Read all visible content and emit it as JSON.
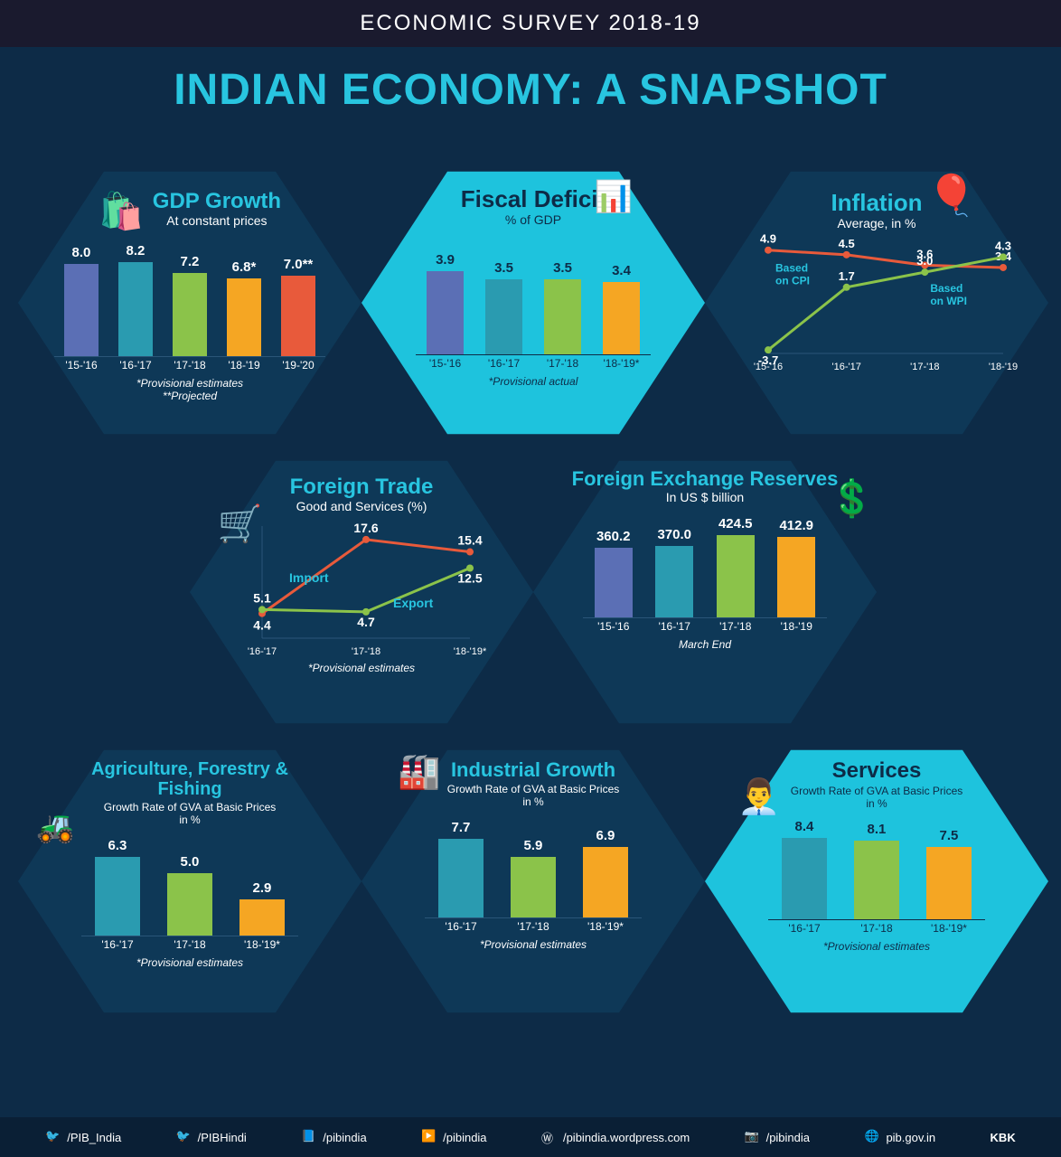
{
  "header": "ECONOMIC SURVEY 2018-19",
  "title": "INDIAN ECONOMY: A SNAPSHOT",
  "colors": {
    "bg": "#0d2b47",
    "accent": "#28c5e0",
    "hex_dark": "#0e3857",
    "hex_light": "#1ec3dd",
    "bar_blue": "#5b6fb5",
    "bar_teal": "#2a9bb0",
    "bar_green": "#8bc34a",
    "bar_orange": "#f5a623",
    "bar_red": "#e85a3b",
    "line_red": "#e85a3b",
    "line_green": "#8bc34a"
  },
  "panels": {
    "gdp": {
      "title": "GDP Growth",
      "subtitle": "At constant prices",
      "type": "bar",
      "categories": [
        "'15-'16",
        "'16-'17",
        "'17-'18",
        "'18-'19",
        "'19-'20"
      ],
      "values": [
        8.0,
        8.2,
        7.2,
        6.8,
        7.0
      ],
      "suffixes": [
        "",
        "",
        "",
        "*",
        "**"
      ],
      "bar_colors": [
        "#5b6fb5",
        "#2a9bb0",
        "#8bc34a",
        "#f5a623",
        "#e85a3b"
      ],
      "note1": "*Provisional estimates",
      "note2": "**Projected",
      "title_color": "#28c5e0",
      "text_color": "#ffffff",
      "icon": "shopping-bag"
    },
    "fiscal": {
      "title": "Fiscal Deficit",
      "subtitle": "% of GDP",
      "type": "bar",
      "categories": [
        "'15-'16",
        "'16-'17",
        "'17-'18",
        "'18-'19*"
      ],
      "values": [
        3.9,
        3.5,
        3.5,
        3.4
      ],
      "bar_colors": [
        "#5b6fb5",
        "#2a9bb0",
        "#8bc34a",
        "#f5a623"
      ],
      "note": "*Provisional actual",
      "title_color": "#0d2b47",
      "text_color": "#0d2b47",
      "icon": "calculator"
    },
    "inflation": {
      "title": "Inflation",
      "subtitle": "Average, in %",
      "type": "line",
      "categories": [
        "'15-'16",
        "'16-'17",
        "'17-'18",
        "'18-'19"
      ],
      "cpi": {
        "label": "Based on CPI",
        "values": [
          4.9,
          4.5,
          3.6,
          3.4
        ],
        "color": "#e85a3b"
      },
      "wpi": {
        "label": "Based on WPI",
        "values": [
          -3.7,
          1.7,
          3.0,
          4.3
        ],
        "color": "#8bc34a"
      },
      "title_color": "#28c5e0",
      "text_color": "#ffffff",
      "icon": "balloon"
    },
    "trade": {
      "title": "Foreign Trade",
      "subtitle": "Good and Services   (%)",
      "type": "line",
      "categories": [
        "'16-'17",
        "'17-'18",
        "'18-'19*"
      ],
      "import": {
        "label": "Import",
        "values": [
          4.4,
          17.6,
          15.4
        ],
        "color": "#e85a3b"
      },
      "export": {
        "label": "Export",
        "values": [
          5.1,
          4.7,
          12.5
        ],
        "color": "#8bc34a"
      },
      "note": "*Provisional estimates",
      "title_color": "#28c5e0",
      "text_color": "#ffffff",
      "icon": "cart"
    },
    "forex": {
      "title": "Foreign Exchange Reserves",
      "subtitle": "In US $ billion",
      "type": "bar",
      "categories": [
        "'15-'16",
        "'16-'17",
        "'17-'18",
        "'18-'19"
      ],
      "values": [
        360.2,
        370.0,
        424.5,
        412.9
      ],
      "bar_colors": [
        "#5b6fb5",
        "#2a9bb0",
        "#8bc34a",
        "#f5a623"
      ],
      "note": "March End",
      "title_color": "#28c5e0",
      "text_color": "#ffffff",
      "icon": "dollar"
    },
    "agri": {
      "title": "Agriculture, Forestry & Fishing",
      "subtitle": "Growth Rate of GVA at Basic Prices in %",
      "type": "bar",
      "categories": [
        "'16-'17",
        "'17-'18",
        "'18-'19*"
      ],
      "values": [
        6.3,
        5.0,
        2.9
      ],
      "bar_colors": [
        "#2a9bb0",
        "#8bc34a",
        "#f5a623"
      ],
      "note": "*Provisional estimates",
      "title_color": "#28c5e0",
      "text_color": "#ffffff",
      "icon": "tractor"
    },
    "industrial": {
      "title": "Industrial Growth",
      "subtitle": "Growth Rate of GVA at Basic Prices in %",
      "type": "bar",
      "categories": [
        "'16-'17",
        "'17-'18",
        "'18-'19*"
      ],
      "values": [
        7.7,
        5.9,
        6.9
      ],
      "bar_colors": [
        "#2a9bb0",
        "#8bc34a",
        "#f5a623"
      ],
      "note": "*Provisional estimates",
      "title_color": "#28c5e0",
      "text_color": "#ffffff",
      "icon": "factory"
    },
    "services": {
      "title": "Services",
      "subtitle": "Growth Rate of GVA at Basic Prices in %",
      "type": "bar",
      "categories": [
        "'16-'17",
        "'17-'18",
        "'18-'19*"
      ],
      "values": [
        8.4,
        8.1,
        7.5
      ],
      "bar_colors": [
        "#2a9bb0",
        "#8bc34a",
        "#f5a623"
      ],
      "note": "*Provisional estimates",
      "title_color": "#0d2b47",
      "text_color": "#0d2b47",
      "icon": "headset"
    }
  },
  "footer": {
    "items": [
      {
        "icon": "twitter",
        "label": "/PIB_India"
      },
      {
        "icon": "twitter",
        "label": "/PIBHindi"
      },
      {
        "icon": "facebook",
        "label": "/pibindia"
      },
      {
        "icon": "youtube",
        "label": "/pibindia"
      },
      {
        "icon": "wordpress",
        "label": "/pibindia.wordpress.com"
      },
      {
        "icon": "instagram",
        "label": "/pibindia"
      },
      {
        "icon": "globe",
        "label": "pib.gov.in"
      }
    ],
    "credit": "KBK"
  }
}
